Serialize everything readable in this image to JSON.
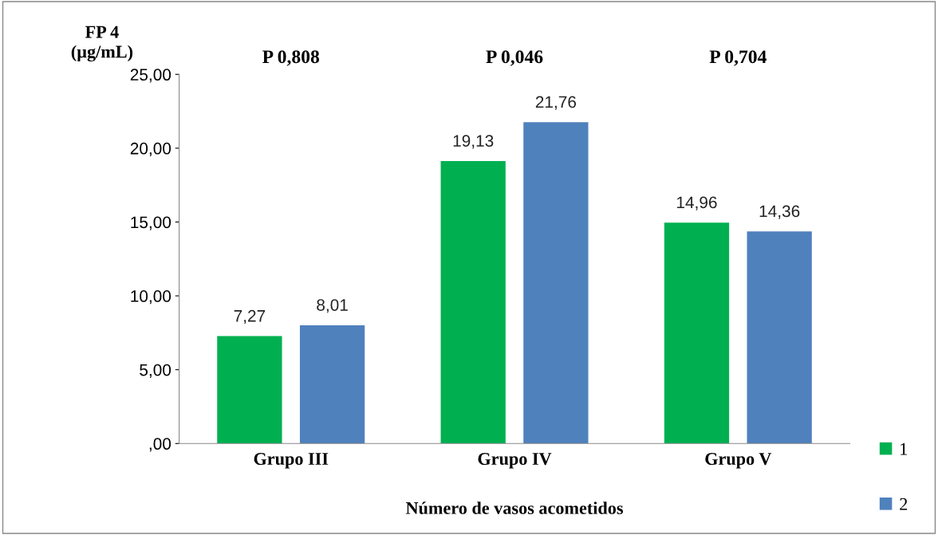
{
  "chart_data": {
    "type": "bar",
    "ylabel": "FP 4\n(µg/mL)",
    "xlabel": "Número de vasos acometidos",
    "categories": [
      "Grupo III",
      "Grupo IV",
      "Grupo V"
    ],
    "series": [
      {
        "name": "1",
        "color": "#00b050",
        "values": [
          7.27,
          19.13,
          14.96
        ],
        "value_labels": [
          "7,27",
          "19,13",
          "14,96"
        ]
      },
      {
        "name": "2",
        "color": "#4f81bd",
        "values": [
          8.01,
          21.76,
          14.36
        ],
        "value_labels": [
          "8,01",
          "21,76",
          "14,36"
        ]
      }
    ],
    "ylim": [
      0,
      25
    ],
    "yticks": [
      {
        "value": 0,
        "label": ",00"
      },
      {
        "value": 5,
        "label": "5,00"
      },
      {
        "value": 10,
        "label": "10,00"
      },
      {
        "value": 15,
        "label": "15,00"
      },
      {
        "value": 20,
        "label": "20,00"
      },
      {
        "value": 25,
        "label": "25,00"
      }
    ],
    "annotations": [
      "P 0,808",
      "P 0,046",
      "P 0,704"
    ],
    "legend": "bottom right",
    "grid": false
  }
}
